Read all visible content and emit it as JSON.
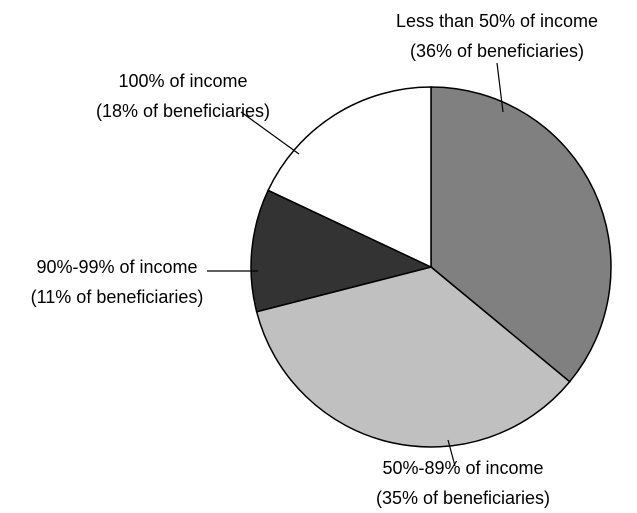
{
  "chart_data": {
    "type": "pie",
    "title": "",
    "slices": [
      {
        "label": "Less than 50% of income",
        "detail": "(36% of beneficiaries)",
        "value": 36,
        "color": "#808080"
      },
      {
        "label": "50%-89% of income",
        "detail": "(35% of beneficiaries)",
        "value": 35,
        "color": "#c0c0c0"
      },
      {
        "label": "90%-99% of income",
        "detail": "(11% of beneficiaries)",
        "value": 11,
        "color": "#333333"
      },
      {
        "label": "100% of income",
        "detail": "(18% of beneficiaries)",
        "value": 18,
        "color": "#ffffff"
      }
    ],
    "start_direction": "12 o'clock",
    "direction": "clockwise",
    "legend": "none (leader-line labels)"
  }
}
